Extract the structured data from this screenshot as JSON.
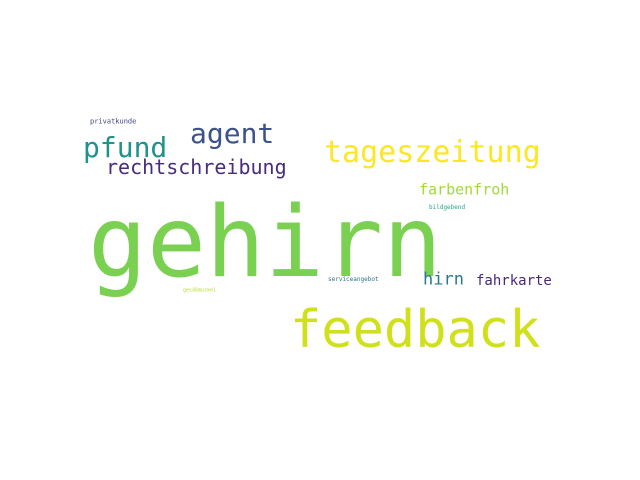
{
  "words": [
    {
      "text": "gehirn",
      "color": "#7ad151"
    },
    {
      "text": "feedback",
      "color": "#d0e11c"
    },
    {
      "text": "tageszeitung",
      "color": "#fde725"
    },
    {
      "text": "agent",
      "color": "#3b528b"
    },
    {
      "text": "pfund",
      "color": "#21918c"
    },
    {
      "text": "rechtschreibung",
      "color": "#472d7b"
    },
    {
      "text": "farbenfroh",
      "color": "#a0da39"
    },
    {
      "text": "hirn",
      "color": "#2a788e"
    },
    {
      "text": "fahrkarte",
      "color": "#482878"
    },
    {
      "text": "privatkunde",
      "color": "#414487"
    },
    {
      "text": "bildgebend",
      "color": "#22a884"
    },
    {
      "text": "serviceangebot",
      "color": "#2c728e"
    },
    {
      "text": "gesäßmuskel",
      "color": "#b5de2b"
    }
  ]
}
